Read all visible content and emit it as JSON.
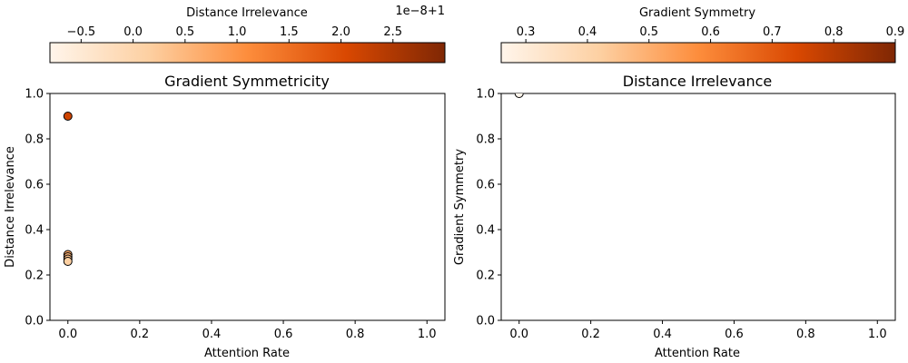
{
  "chart_data": [
    {
      "type": "scatter",
      "title": "Gradient Symmetricity",
      "xlabel": "Attention Rate",
      "ylabel": "Distance Irrelevance",
      "xlim": [
        -0.05,
        1.05
      ],
      "ylim": [
        0.0,
        1.0
      ],
      "xticks": [
        0.0,
        0.2,
        0.4,
        0.6,
        0.8,
        1.0
      ],
      "xtick_labels": [
        "0.0",
        "0.2",
        "0.4",
        "0.6",
        "0.8",
        "1.0"
      ],
      "yticks": [
        0.0,
        0.2,
        0.4,
        0.6,
        0.8,
        1.0
      ],
      "ytick_labels": [
        "0.0",
        "0.2",
        "0.4",
        "0.6",
        "0.8",
        "1.0"
      ],
      "grid": false,
      "points": [
        {
          "x": 0.0,
          "y": 0.9,
          "c": 0.78
        },
        {
          "x": 0.0,
          "y": 0.29,
          "c": 0.4
        },
        {
          "x": 0.0,
          "y": 0.28,
          "c": 0.35
        },
        {
          "x": 0.0,
          "y": 0.27,
          "c": 0.3
        },
        {
          "x": 0.0,
          "y": 0.26,
          "c": 0.25
        }
      ],
      "colorbar": {
        "label": "Distance Irrelevance",
        "orientation": "horizontal",
        "position": "top",
        "offset_label": "1e−8+1",
        "range": [
          -0.8,
          3.0
        ],
        "ticks": [
          -0.5,
          0.0,
          0.5,
          1.0,
          1.5,
          2.0,
          2.5
        ],
        "tick_labels": [
          "−0.5",
          "0.0",
          "0.5",
          "1.0",
          "1.5",
          "2.0",
          "2.5"
        ],
        "colormap": [
          "#fff5eb",
          "#fdd0a2",
          "#fd8d3c",
          "#d94801",
          "#7f2704"
        ]
      }
    },
    {
      "type": "scatter",
      "title": "Distance Irrelevance",
      "xlabel": "Attention Rate",
      "ylabel": "Gradient Symmetry",
      "xlim": [
        -0.05,
        1.05
      ],
      "ylim": [
        0.0,
        1.0
      ],
      "xticks": [
        0.0,
        0.2,
        0.4,
        0.6,
        0.8,
        1.0
      ],
      "xtick_labels": [
        "0.0",
        "0.2",
        "0.4",
        "0.6",
        "0.8",
        "1.0"
      ],
      "yticks": [
        0.0,
        0.2,
        0.4,
        0.6,
        0.8,
        1.0
      ],
      "ytick_labels": [
        "0.0",
        "0.2",
        "0.4",
        "0.6",
        "0.8",
        "1.0"
      ],
      "grid": false,
      "points": [
        {
          "x": 0.0,
          "y": 1.0,
          "c": 0.0
        }
      ],
      "colorbar": {
        "label": "Gradient Symmetry",
        "orientation": "horizontal",
        "position": "top",
        "offset_label": "",
        "range": [
          0.26,
          0.9
        ],
        "ticks": [
          0.3,
          0.4,
          0.5,
          0.6,
          0.7,
          0.8,
          0.9
        ],
        "tick_labels": [
          "0.3",
          "0.4",
          "0.5",
          "0.6",
          "0.7",
          "0.8",
          "0.9"
        ],
        "colormap": [
          "#fff5eb",
          "#fdd0a2",
          "#fd8d3c",
          "#d94801",
          "#7f2704"
        ]
      }
    }
  ]
}
